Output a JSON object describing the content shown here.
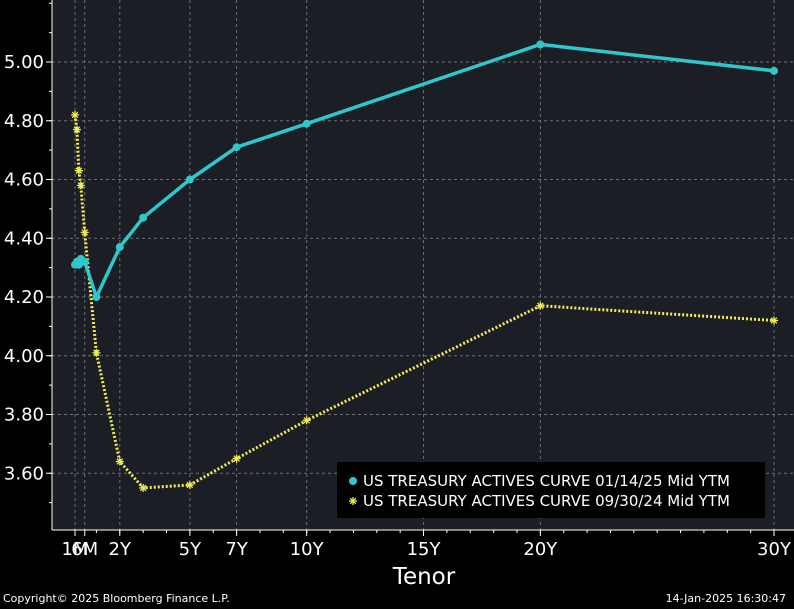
{
  "chart_data": {
    "type": "line",
    "xlabel": "Tenor",
    "x_ticks": [
      {
        "label": "1M",
        "months": 1
      },
      {
        "label": "6M",
        "months": 6
      },
      {
        "label": "2Y",
        "months": 24
      },
      {
        "label": "5Y",
        "months": 60
      },
      {
        "label": "7Y",
        "months": 84
      },
      {
        "label": "10Y",
        "months": 120
      },
      {
        "label": "15Y",
        "months": 180
      },
      {
        "label": "20Y",
        "months": 240
      },
      {
        "label": "30Y",
        "months": 360
      }
    ],
    "y_ticks": [
      "3.60",
      "3.80",
      "4.00",
      "4.20",
      "4.40",
      "4.60",
      "4.80",
      "5.00"
    ],
    "ylim": [
      3.4,
      5.2
    ],
    "grid": true,
    "legend_position": "bottom-right",
    "colors": {
      "background": "#000000",
      "plot_bg": "#1b1e24",
      "grid": "#6b6f74"
    },
    "series": [
      {
        "name": "US TREASURY ACTIVES CURVE 01/14/25 Mid YTM",
        "color": "#2ec8cc",
        "marker": "circle",
        "line": "solid",
        "x": [
          1,
          2,
          3,
          4,
          6,
          12,
          24,
          36,
          60,
          84,
          120,
          240,
          360
        ],
        "y": [
          4.31,
          4.32,
          4.31,
          4.33,
          4.32,
          4.2,
          4.37,
          4.47,
          4.6,
          4.71,
          4.79,
          5.06,
          4.97
        ]
      },
      {
        "name": "US TREASURY ACTIVES CURVE 09/30/24 Mid YTM",
        "color": "#f2ec58",
        "marker": "asterisk",
        "line": "dotted",
        "x": [
          1,
          2,
          3,
          4,
          6,
          12,
          24,
          36,
          60,
          84,
          120,
          240,
          360
        ],
        "y": [
          4.82,
          4.77,
          4.63,
          4.58,
          4.42,
          4.01,
          3.64,
          3.55,
          3.56,
          3.65,
          3.78,
          4.17,
          4.12
        ]
      }
    ]
  },
  "footer": {
    "copyright": "Copyright© 2025 Bloomberg Finance L.P.",
    "timestamp": "14-Jan-2025 16:30:47"
  }
}
